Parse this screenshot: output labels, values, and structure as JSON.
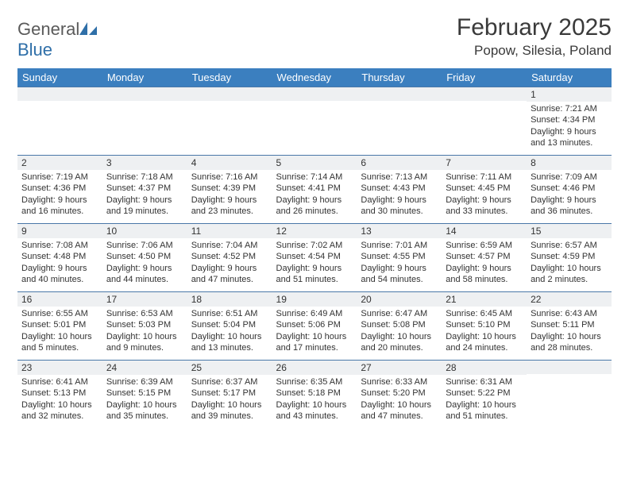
{
  "logo": {
    "word1": "General",
    "word2": "Blue"
  },
  "title": "February 2025",
  "location": "Popow, Silesia, Poland",
  "colors": {
    "header_bg": "#3b7fbf",
    "header_text": "#ffffff",
    "daynum_bg": "#eef0f2",
    "border": "#4a78a8",
    "logo_gray": "#5a5a5a",
    "logo_blue": "#2f6fa8",
    "text": "#333333"
  },
  "days_of_week": [
    "Sunday",
    "Monday",
    "Tuesday",
    "Wednesday",
    "Thursday",
    "Friday",
    "Saturday"
  ],
  "weeks": [
    [
      null,
      null,
      null,
      null,
      null,
      null,
      {
        "n": "1",
        "sr": "7:21 AM",
        "ss": "4:34 PM",
        "dl": "9 hours and 13 minutes."
      }
    ],
    [
      {
        "n": "2",
        "sr": "7:19 AM",
        "ss": "4:36 PM",
        "dl": "9 hours and 16 minutes."
      },
      {
        "n": "3",
        "sr": "7:18 AM",
        "ss": "4:37 PM",
        "dl": "9 hours and 19 minutes."
      },
      {
        "n": "4",
        "sr": "7:16 AM",
        "ss": "4:39 PM",
        "dl": "9 hours and 23 minutes."
      },
      {
        "n": "5",
        "sr": "7:14 AM",
        "ss": "4:41 PM",
        "dl": "9 hours and 26 minutes."
      },
      {
        "n": "6",
        "sr": "7:13 AM",
        "ss": "4:43 PM",
        "dl": "9 hours and 30 minutes."
      },
      {
        "n": "7",
        "sr": "7:11 AM",
        "ss": "4:45 PM",
        "dl": "9 hours and 33 minutes."
      },
      {
        "n": "8",
        "sr": "7:09 AM",
        "ss": "4:46 PM",
        "dl": "9 hours and 36 minutes."
      }
    ],
    [
      {
        "n": "9",
        "sr": "7:08 AM",
        "ss": "4:48 PM",
        "dl": "9 hours and 40 minutes."
      },
      {
        "n": "10",
        "sr": "7:06 AM",
        "ss": "4:50 PM",
        "dl": "9 hours and 44 minutes."
      },
      {
        "n": "11",
        "sr": "7:04 AM",
        "ss": "4:52 PM",
        "dl": "9 hours and 47 minutes."
      },
      {
        "n": "12",
        "sr": "7:02 AM",
        "ss": "4:54 PM",
        "dl": "9 hours and 51 minutes."
      },
      {
        "n": "13",
        "sr": "7:01 AM",
        "ss": "4:55 PM",
        "dl": "9 hours and 54 minutes."
      },
      {
        "n": "14",
        "sr": "6:59 AM",
        "ss": "4:57 PM",
        "dl": "9 hours and 58 minutes."
      },
      {
        "n": "15",
        "sr": "6:57 AM",
        "ss": "4:59 PM",
        "dl": "10 hours and 2 minutes."
      }
    ],
    [
      {
        "n": "16",
        "sr": "6:55 AM",
        "ss": "5:01 PM",
        "dl": "10 hours and 5 minutes."
      },
      {
        "n": "17",
        "sr": "6:53 AM",
        "ss": "5:03 PM",
        "dl": "10 hours and 9 minutes."
      },
      {
        "n": "18",
        "sr": "6:51 AM",
        "ss": "5:04 PM",
        "dl": "10 hours and 13 minutes."
      },
      {
        "n": "19",
        "sr": "6:49 AM",
        "ss": "5:06 PM",
        "dl": "10 hours and 17 minutes."
      },
      {
        "n": "20",
        "sr": "6:47 AM",
        "ss": "5:08 PM",
        "dl": "10 hours and 20 minutes."
      },
      {
        "n": "21",
        "sr": "6:45 AM",
        "ss": "5:10 PM",
        "dl": "10 hours and 24 minutes."
      },
      {
        "n": "22",
        "sr": "6:43 AM",
        "ss": "5:11 PM",
        "dl": "10 hours and 28 minutes."
      }
    ],
    [
      {
        "n": "23",
        "sr": "6:41 AM",
        "ss": "5:13 PM",
        "dl": "10 hours and 32 minutes."
      },
      {
        "n": "24",
        "sr": "6:39 AM",
        "ss": "5:15 PM",
        "dl": "10 hours and 35 minutes."
      },
      {
        "n": "25",
        "sr": "6:37 AM",
        "ss": "5:17 PM",
        "dl": "10 hours and 39 minutes."
      },
      {
        "n": "26",
        "sr": "6:35 AM",
        "ss": "5:18 PM",
        "dl": "10 hours and 43 minutes."
      },
      {
        "n": "27",
        "sr": "6:33 AM",
        "ss": "5:20 PM",
        "dl": "10 hours and 47 minutes."
      },
      {
        "n": "28",
        "sr": "6:31 AM",
        "ss": "5:22 PM",
        "dl": "10 hours and 51 minutes."
      },
      null
    ]
  ],
  "labels": {
    "sunrise": "Sunrise:",
    "sunset": "Sunset:",
    "daylight": "Daylight:"
  }
}
